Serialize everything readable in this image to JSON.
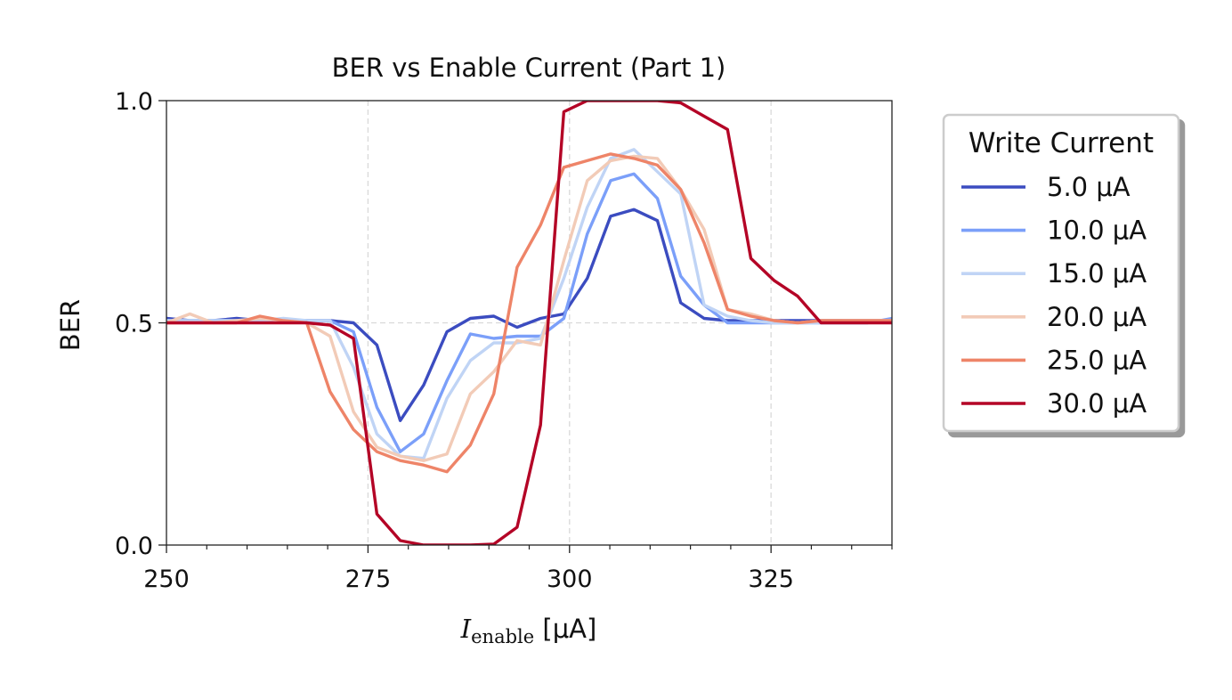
{
  "chart_data": {
    "type": "line",
    "title": "BER vs Enable Current (Part 1)",
    "xlabel_main": "I",
    "xlabel_sub": "enable",
    "xlabel_units": " [μA]",
    "ylabel": "BER",
    "xlim": [
      250,
      340
    ],
    "ylim": [
      0,
      1
    ],
    "xticks": [
      {
        "value": 250,
        "label": "250"
      },
      {
        "value": 275,
        "label": "275"
      },
      {
        "value": 300,
        "label": "300"
      },
      {
        "value": 325,
        "label": "325"
      }
    ],
    "yticks": [
      {
        "value": 0,
        "label": "0.0"
      },
      {
        "value": 0.5,
        "label": "0.5"
      },
      {
        "value": 1,
        "label": "1.0"
      }
    ],
    "minor_xticks": [
      255,
      260,
      265,
      270,
      280,
      285,
      290,
      295,
      305,
      310,
      315,
      320,
      330,
      335,
      340
    ],
    "grid": true,
    "legend_title": "Write Current",
    "legend_position": "outside-right",
    "x": [
      250,
      252.9,
      255.8,
      258.7,
      261.6,
      264.5,
      267.4,
      270.3,
      273.2,
      276.1,
      279,
      281.9,
      284.8,
      287.7,
      290.6,
      293.5,
      296.4,
      299.3,
      302.2,
      305.1,
      308,
      310.9,
      313.8,
      316.7,
      319.6,
      322.5,
      325.4,
      328.3,
      331.2,
      334.1,
      337,
      340
    ],
    "series": [
      {
        "name": "5.0 μA",
        "color": "#3b4cc0",
        "values": [
          0.51,
          0.505,
          0.505,
          0.51,
          0.505,
          0.505,
          0.505,
          0.505,
          0.5,
          0.45,
          0.28,
          0.36,
          0.48,
          0.51,
          0.515,
          0.49,
          0.51,
          0.52,
          0.6,
          0.74,
          0.755,
          0.73,
          0.545,
          0.51,
          0.505,
          0.505,
          0.505,
          0.505,
          0.505,
          0.505,
          0.505,
          0.505
        ]
      },
      {
        "name": "10.0 μA",
        "color": "#7b9ff9",
        "values": [
          0.505,
          0.505,
          0.505,
          0.505,
          0.505,
          0.505,
          0.505,
          0.505,
          0.48,
          0.31,
          0.21,
          0.25,
          0.37,
          0.475,
          0.465,
          0.47,
          0.47,
          0.51,
          0.7,
          0.82,
          0.835,
          0.78,
          0.605,
          0.54,
          0.5,
          0.5,
          0.5,
          0.5,
          0.5,
          0.5,
          0.5,
          0.51
        ]
      },
      {
        "name": "15.0 μA",
        "color": "#c0d4f5",
        "values": [
          0.505,
          0.505,
          0.505,
          0.505,
          0.505,
          0.51,
          0.505,
          0.505,
          0.4,
          0.25,
          0.2,
          0.195,
          0.33,
          0.415,
          0.455,
          0.455,
          0.465,
          0.6,
          0.76,
          0.87,
          0.89,
          0.84,
          0.79,
          0.54,
          0.515,
          0.505,
          0.5,
          0.5,
          0.5,
          0.505,
          0.505,
          0.505
        ]
      },
      {
        "name": "20.0 μA",
        "color": "#f2cbb7",
        "values": [
          0.5,
          0.52,
          0.5,
          0.505,
          0.51,
          0.505,
          0.5,
          0.47,
          0.3,
          0.22,
          0.2,
          0.19,
          0.205,
          0.34,
          0.39,
          0.46,
          0.45,
          0.64,
          0.82,
          0.865,
          0.875,
          0.87,
          0.8,
          0.71,
          0.53,
          0.52,
          0.505,
          0.5,
          0.505,
          0.505,
          0.505,
          0.505
        ]
      },
      {
        "name": "25.0 μA",
        "color": "#ee8468",
        "values": [
          0.5,
          0.5,
          0.5,
          0.5,
          0.515,
          0.505,
          0.5,
          0.345,
          0.26,
          0.21,
          0.19,
          0.18,
          0.165,
          0.225,
          0.34,
          0.625,
          0.72,
          0.85,
          0.865,
          0.88,
          0.87,
          0.855,
          0.8,
          0.68,
          0.53,
          0.515,
          0.505,
          0.5,
          0.505,
          0.505,
          0.505,
          0.505
        ]
      },
      {
        "name": "30.0 μA",
        "color": "#b40426",
        "values": [
          0.5,
          0.5,
          0.5,
          0.5,
          0.5,
          0.5,
          0.5,
          0.495,
          0.465,
          0.07,
          0.01,
          0.0,
          0.0,
          0.0,
          0.002,
          0.04,
          0.27,
          0.975,
          1.0,
          1.0,
          1.0,
          1.0,
          0.995,
          0.965,
          0.935,
          0.645,
          0.595,
          0.56,
          0.5,
          0.5,
          0.5,
          0.5
        ]
      }
    ]
  }
}
